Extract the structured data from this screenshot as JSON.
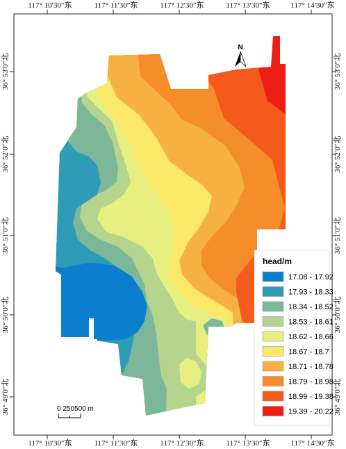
{
  "map": {
    "longitude_labels": [
      "117° 10′30″东",
      "117° 11′30″东",
      "117° 12′30″东",
      "117° 13′30″东",
      "117° 14′30″东"
    ],
    "latitude_labels": [
      "36° 53′0″北",
      "36° 52′0″北",
      "36° 51′0″北",
      "36° 50′0″北",
      "36° 49′0″北"
    ],
    "north_arrow": {
      "label": "N",
      "icon": "north-arrow-icon"
    },
    "scale_bar": {
      "label": "0 250500 m"
    },
    "legend": {
      "title": "head/m",
      "items": [
        {
          "label": "17.08 - 17.92",
          "color": "#0a7fcf"
        },
        {
          "label": "17.93 - 18.33",
          "color": "#2e9cb6"
        },
        {
          "label": "18.34 - 18.52",
          "color": "#7db79a"
        },
        {
          "label": "18.53 - 18.61",
          "color": "#b5d58e"
        },
        {
          "label": "18.62 - 18.66",
          "color": "#e6ef7f"
        },
        {
          "label": "18.67 - 18.7",
          "color": "#fbe868"
        },
        {
          "label": "18.71 - 18.78",
          "color": "#f7b042"
        },
        {
          "label": "18.79 - 18.98",
          "color": "#f58d2b"
        },
        {
          "label": "18.99 - 19.38",
          "color": "#f35a1c"
        },
        {
          "label": "19.39 - 20.22",
          "color": "#ee1d16"
        }
      ]
    }
  }
}
